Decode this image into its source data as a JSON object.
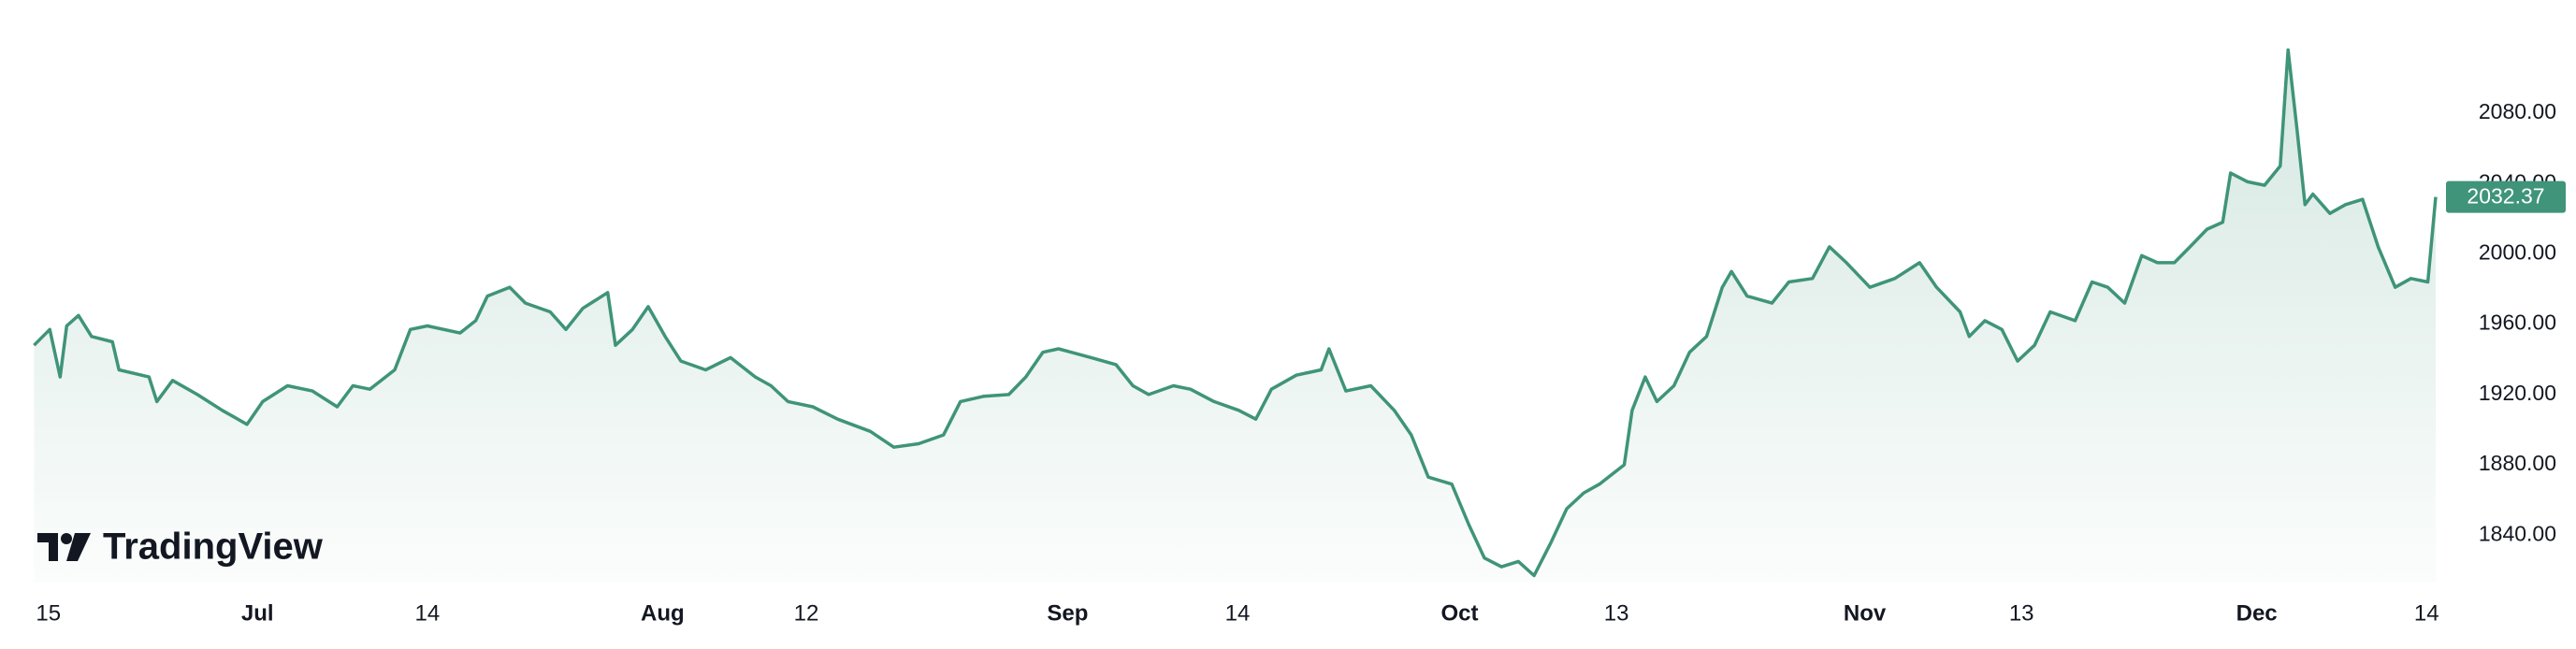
{
  "chart_data": {
    "type": "area",
    "logo": "TradingView",
    "xlim": [
      -1.2,
      183.2
    ],
    "xticks": [
      {
        "value": 0,
        "label": "15"
      },
      {
        "value": 16,
        "label": "Jul"
      },
      {
        "value": 29,
        "label": "14"
      },
      {
        "value": 47,
        "label": "Aug"
      },
      {
        "value": 58,
        "label": "12"
      },
      {
        "value": 78,
        "label": "Sep"
      },
      {
        "value": 91,
        "label": "14"
      },
      {
        "value": 108,
        "label": "Oct"
      },
      {
        "value": 120,
        "label": "13"
      },
      {
        "value": 139,
        "label": "Nov"
      },
      {
        "value": 151,
        "label": "13"
      },
      {
        "value": 169,
        "label": "Dec"
      },
      {
        "value": 182,
        "label": "14"
      }
    ],
    "ylim": [
      1813,
      2144.4
    ],
    "yticks": [
      {
        "value": 1840,
        "label": "1840.00"
      },
      {
        "value": 1880,
        "label": "1880.00"
      },
      {
        "value": 1920,
        "label": "1920.00"
      },
      {
        "value": 1960,
        "label": "1960.00"
      },
      {
        "value": 2000,
        "label": "2000.00"
      },
      {
        "value": 2040,
        "label": "2040.00"
      },
      {
        "value": 2080,
        "label": "2080.00"
      }
    ],
    "grid": false,
    "series": [
      {
        "color": "#3f9479",
        "last_price": 2032.37,
        "x": [
          -1.1,
          0.1,
          0.9,
          1.4,
          2.3,
          3.3,
          4.9,
          5.4,
          7.7,
          8.3,
          9.5,
          11.4,
          13.3,
          15.2,
          16.4,
          18.3,
          20.2,
          22.1,
          23.3,
          24.6,
          26.5,
          27.7,
          29.0,
          31.5,
          32.7,
          33.6,
          35.3,
          36.5,
          38.4,
          39.6,
          40.9,
          42.8,
          43.4,
          44.7,
          45.9,
          47.2,
          48.4,
          50.3,
          52.2,
          54.1,
          55.3,
          56.6,
          58.5,
          60.4,
          62.9,
          64.7,
          66.6,
          68.5,
          69.8,
          71.6,
          73.5,
          74.8,
          76.1,
          77.3,
          79.8,
          81.7,
          83.0,
          84.2,
          86.1,
          87.4,
          89.2,
          91.1,
          92.4,
          93.6,
          95.5,
          97.4,
          98.0,
          99.3,
          101.2,
          103.0,
          104.3,
          105.6,
          107.4,
          108.7,
          109.9,
          111.2,
          112.5,
          113.7,
          115.0,
          116.2,
          117.5,
          118.7,
          120.6,
          121.2,
          122.2,
          123.1,
          124.4,
          125.6,
          126.9,
          128.1,
          128.8,
          130.0,
          131.9,
          133.2,
          135.0,
          136.3,
          137.6,
          139.4,
          141.3,
          143.2,
          144.5,
          146.3,
          147.0,
          148.2,
          149.5,
          150.7,
          152.0,
          153.2,
          155.1,
          156.4,
          157.6,
          158.9,
          160.2,
          161.4,
          162.7,
          163.9,
          165.2,
          166.4,
          167.0,
          168.3,
          169.6,
          170.8,
          171.4,
          172.1,
          172.7,
          173.3,
          174.6,
          175.8,
          177.1,
          178.3,
          179.6,
          180.8,
          182.1,
          182.7
        ],
        "values": [
          1948,
          1957,
          1930,
          1959,
          1965,
          1953,
          1950,
          1934,
          1930,
          1916,
          1928,
          1920,
          1911,
          1903,
          1916,
          1925,
          1922,
          1913,
          1925,
          1923,
          1934,
          1957,
          1959,
          1955,
          1962,
          1976,
          1981,
          1972,
          1967,
          1957,
          1969,
          1978,
          1948,
          1957,
          1970,
          1953,
          1939,
          1934,
          1941,
          1930,
          1925,
          1916,
          1913,
          1906,
          1899,
          1890,
          1892,
          1897,
          1916,
          1919,
          1920,
          1930,
          1944,
          1946,
          1941,
          1937,
          1925,
          1920,
          1925,
          1923,
          1916,
          1911,
          1906,
          1923,
          1931,
          1934,
          1946,
          1922,
          1925,
          1911,
          1897,
          1873,
          1869,
          1846,
          1827,
          1822,
          1825,
          1817,
          1836,
          1855,
          1864,
          1869,
          1880,
          1911,
          1930,
          1916,
          1925,
          1944,
          1953,
          1981,
          1990,
          1976,
          1972,
          1984,
          1986,
          2004,
          1995,
          1981,
          1986,
          1995,
          1981,
          1967,
          1953,
          1962,
          1957,
          1939,
          1948,
          1967,
          1962,
          1984,
          1981,
          1972,
          1999,
          1995,
          1995,
          2004,
          2014,
          2018,
          2046,
          2041,
          2039,
          2050,
          2116,
          2070,
          2028,
          2034,
          2023,
          2028,
          2031,
          2004,
          1981,
          1986,
          1984,
          2032.37
        ]
      }
    ]
  }
}
